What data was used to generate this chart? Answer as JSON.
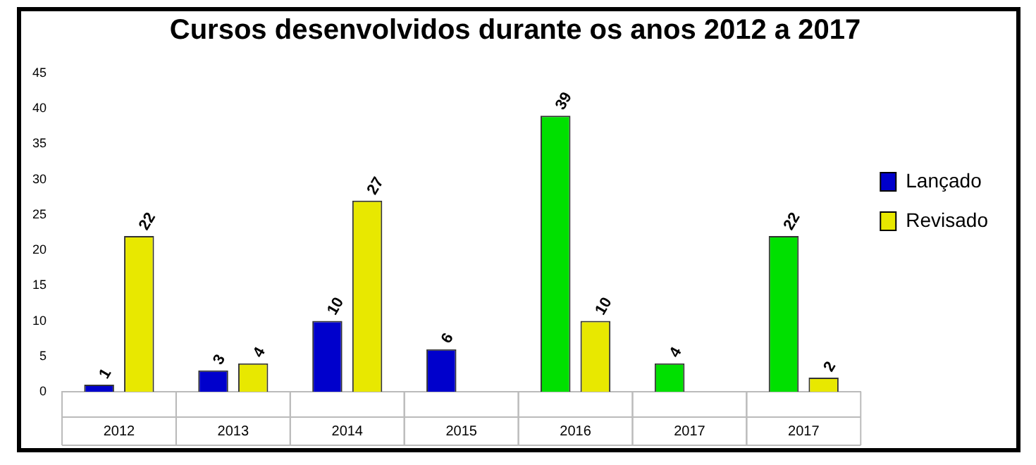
{
  "chart_data": {
    "type": "bar",
    "title": "Cursos desenvolvidos durante os anos 2012 a 2017",
    "categories": [
      "2012",
      "2013",
      "2014",
      "2015",
      "2016",
      "2017",
      "2017"
    ],
    "series": [
      {
        "name": "Lançado",
        "color": "#0000cc",
        "colors": [
          "#0000cc",
          "#0000cc",
          "#0000cc",
          "#0000cc",
          "#00e000",
          "#00e000",
          "#00e000"
        ],
        "values": [
          1,
          3,
          10,
          6,
          39,
          4,
          22
        ]
      },
      {
        "name": "Revisado",
        "color": "#e8e800",
        "colors": [
          "#e8e800",
          "#e8e800",
          "#e8e800",
          "#e8e800",
          "#e8e800",
          "#e8e800",
          "#e8e800"
        ],
        "values": [
          22,
          4,
          27,
          null,
          10,
          null,
          2
        ]
      }
    ],
    "ylim": [
      0,
      45
    ],
    "yticks": [
      0,
      5,
      10,
      15,
      20,
      25,
      30,
      35,
      40,
      45
    ],
    "grid": false,
    "legend": "right",
    "data_labels": true
  }
}
